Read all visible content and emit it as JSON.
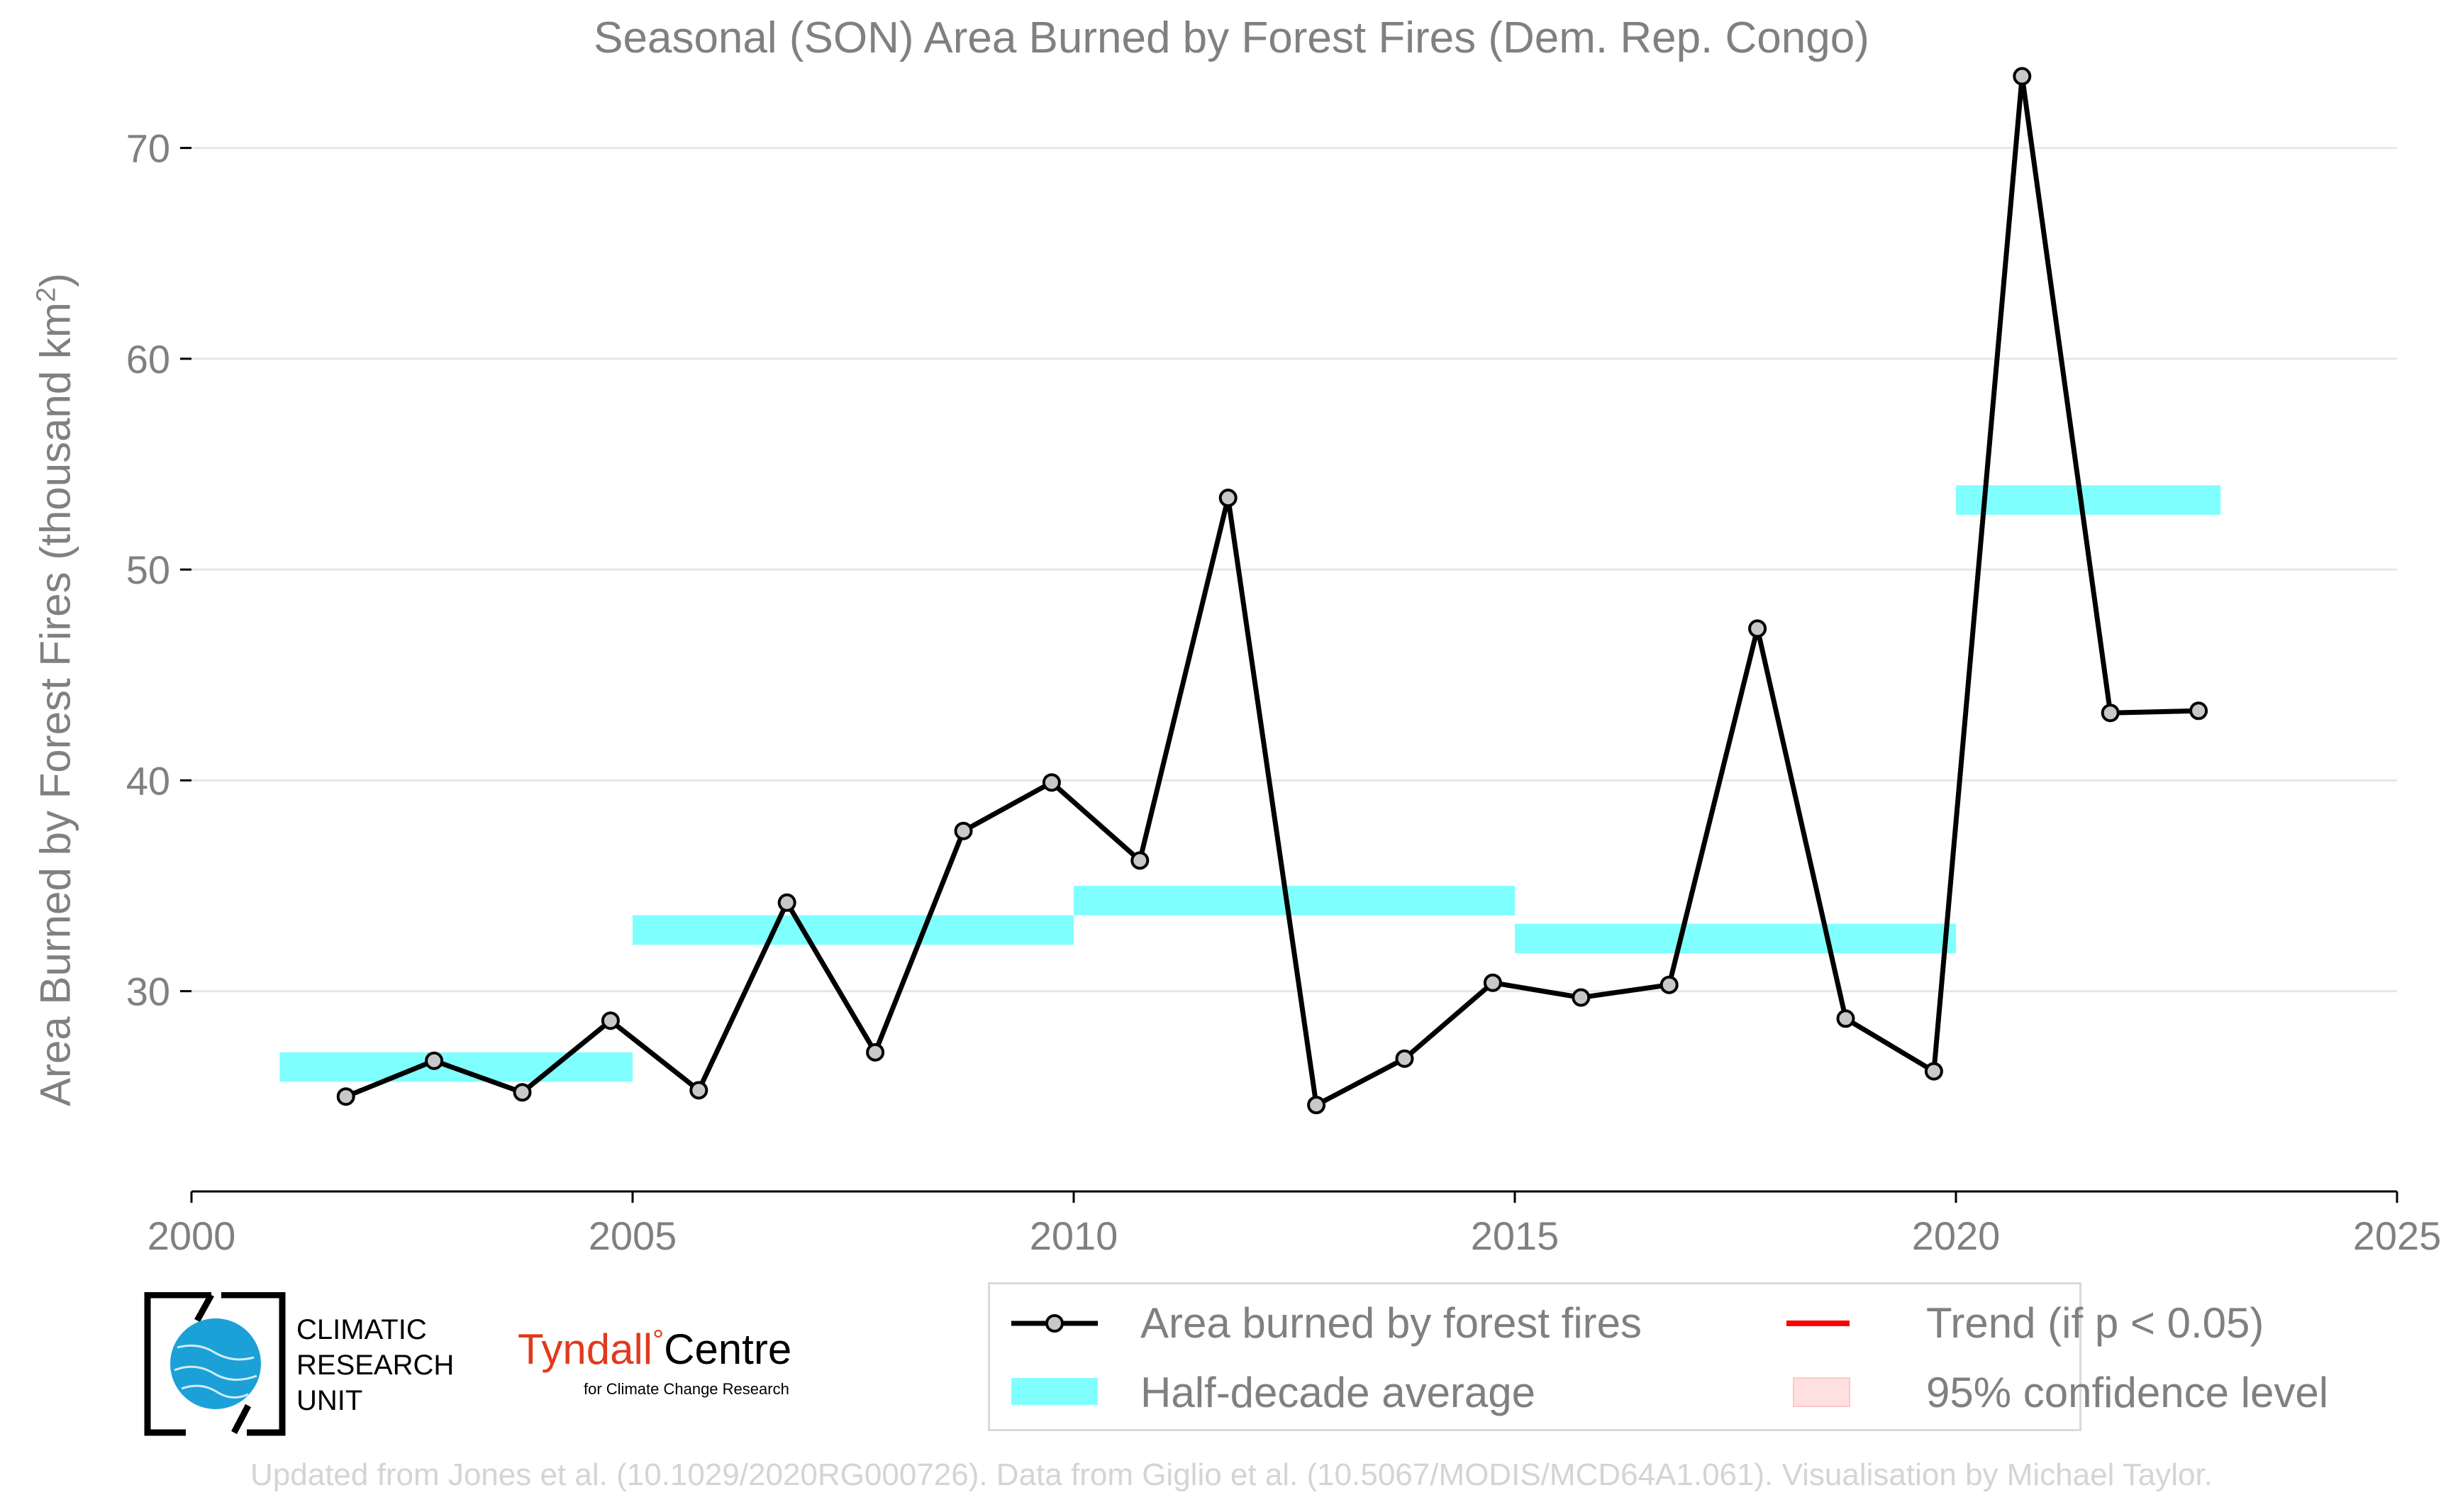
{
  "chart_data": {
    "type": "line",
    "title": "Seasonal (SON) Area Burned by Forest Fires (Dem. Rep. Congo)",
    "ylabel": "Area Burned by Forest Fires (thousand km",
    "ylabel_sup": "2",
    "ylabel_close": ")",
    "xlim": [
      2000,
      2025
    ],
    "ylim": [
      20.5,
      75
    ],
    "xticks": [
      2000,
      2005,
      2010,
      2015,
      2020,
      2025
    ],
    "yticks": [
      30,
      40,
      50,
      60,
      70
    ],
    "grid": "horizontal",
    "legend_position": "bottom",
    "series": [
      {
        "name": "Area burned by forest fires",
        "color": "#000000",
        "marker_color": "#c8c8c8",
        "x": [
          2001.75,
          2002.75,
          2003.75,
          2004.75,
          2005.75,
          2006.75,
          2007.75,
          2008.75,
          2009.75,
          2010.75,
          2011.75,
          2012.75,
          2013.75,
          2014.75,
          2015.75,
          2016.75,
          2017.75,
          2018.75,
          2019.75,
          2020.75,
          2021.75,
          2022.75
        ],
        "y": [
          25.0,
          26.7,
          25.2,
          28.6,
          25.3,
          34.2,
          27.1,
          37.6,
          39.9,
          36.2,
          53.4,
          24.6,
          26.8,
          30.4,
          29.7,
          30.3,
          47.2,
          28.7,
          26.2,
          73.4,
          43.2,
          43.3
        ]
      }
    ],
    "half_decade_average": {
      "name": "Half-decade average",
      "color": "#80ffff",
      "segments": [
        {
          "x0": 2001,
          "x1": 2005,
          "y0": 25.7,
          "y1": 27.1
        },
        {
          "x0": 2005,
          "x1": 2010,
          "y0": 32.2,
          "y1": 33.6
        },
        {
          "x0": 2010,
          "x1": 2015,
          "y0": 33.6,
          "y1": 35.0
        },
        {
          "x0": 2015,
          "x1": 2020,
          "y0": 31.8,
          "y1": 33.2
        },
        {
          "x0": 2020,
          "x1": 2023,
          "y0": 52.6,
          "y1": 54.0
        }
      ]
    },
    "legend": [
      {
        "label": "Area burned by forest fires",
        "kind": "line-marker",
        "color": "#000000"
      },
      {
        "label": "Half-decade average",
        "kind": "band",
        "color": "#80ffff"
      },
      {
        "label": "Trend (if p < 0.05)",
        "kind": "line",
        "color": "#ff0000"
      },
      {
        "label": "95% confidence level",
        "kind": "band",
        "color": "#ffe0e0"
      }
    ]
  },
  "logos": {
    "cru": "CLIMATIC RESEARCH UNIT",
    "cru_lines": [
      "CLIMATIC",
      "RESEARCH",
      "UNIT"
    ],
    "tyndall_main": "Tyndall",
    "tyndall_degree": "°",
    "tyndall_centre": "Centre",
    "tyndall_sub": "for Climate Change Research"
  },
  "footer": "Updated from Jones et al. (10.1029/2020RG000726). Data from Giglio et al. (10.5067/MODIS/MCD64A1.061). Visualisation by Michael Taylor."
}
